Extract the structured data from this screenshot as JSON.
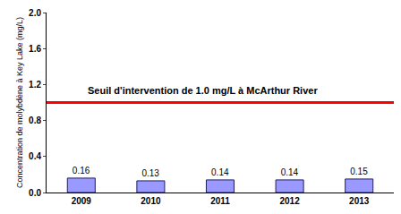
{
  "chart_data": {
    "type": "bar",
    "ylabel": "Concentration de molybdène à Key Lake (mg/L)",
    "categories": [
      "2009",
      "2010",
      "2011",
      "2012",
      "2013"
    ],
    "values": [
      0.16,
      0.13,
      0.14,
      0.14,
      0.15
    ],
    "color": "#9999ff",
    "ylim": [
      0,
      2
    ],
    "yticks": [
      {
        "value": 0,
        "label": "0.0"
      },
      0.4,
      0.8,
      1.2,
      1.6,
      {
        "value": 2,
        "label": "2.0"
      }
    ],
    "grid": false,
    "data_labels": true,
    "reference_line": {
      "value": 1,
      "label": "Seuil d'intervention de 1.0 mg/L à McArthur River",
      "color": "#ff0000"
    }
  }
}
